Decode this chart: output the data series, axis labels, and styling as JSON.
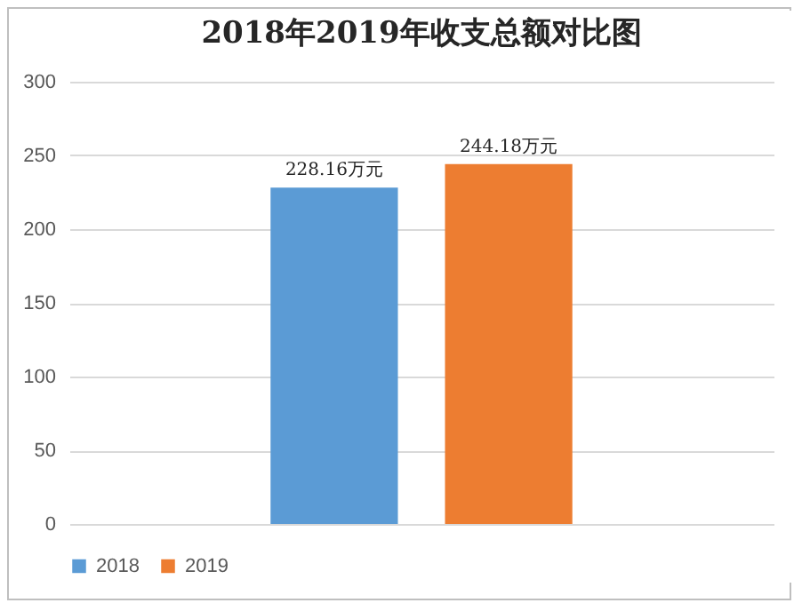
{
  "chart_data": {
    "type": "bar",
    "title": "2018年2019年收支总额对比图",
    "categories": [
      null
    ],
    "series": [
      {
        "name": "2018",
        "color": "#5b9bd5",
        "values": [
          228.16
        ],
        "value_labels": [
          "228.16万元"
        ]
      },
      {
        "name": "2019",
        "color": "#ed7d31",
        "values": [
          244.18
        ],
        "value_labels": [
          "244.18万元"
        ]
      }
    ],
    "ylim": [
      0,
      300
    ],
    "yticks": [
      0,
      50,
      100,
      150,
      200,
      250,
      300
    ],
    "grid": "y",
    "legend": "bottom"
  }
}
